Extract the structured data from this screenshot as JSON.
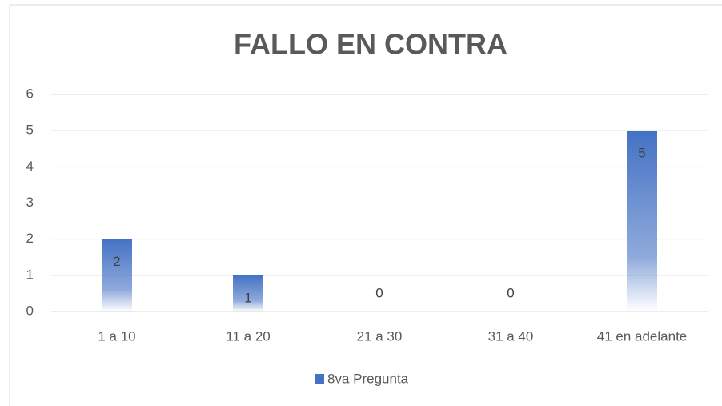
{
  "chart_data": {
    "type": "bar",
    "title": "FALLO EN CONTRA",
    "categories": [
      "1 a 10",
      "11 a 20",
      "21 a 30",
      "31 a 40",
      "41 en adelante"
    ],
    "series": [
      {
        "name": "8va Pregunta",
        "color": "#4472c4",
        "values": [
          2,
          1,
          0,
          0,
          5
        ]
      }
    ],
    "ylim": [
      0,
      6
    ],
    "yticks": [
      0,
      1,
      2,
      3,
      4,
      5,
      6
    ],
    "grid": true,
    "legend": "bottom",
    "data_labels": true
  }
}
